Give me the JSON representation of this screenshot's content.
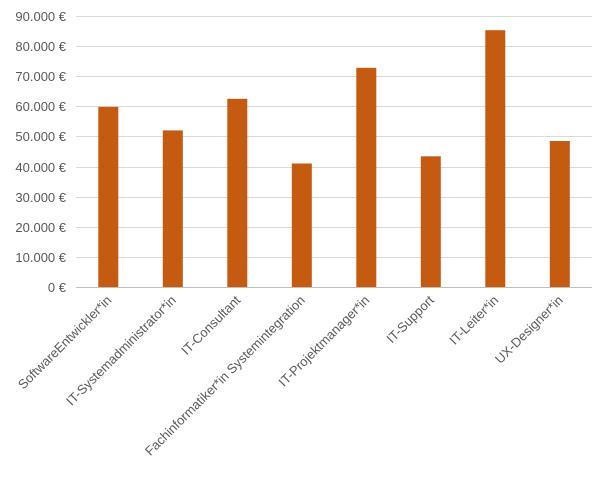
{
  "chart_data": {
    "type": "bar",
    "title": "",
    "xlabel": "",
    "ylabel": "",
    "ylim": [
      0,
      90000
    ],
    "yticks": [
      0,
      10000,
      20000,
      30000,
      40000,
      50000,
      60000,
      70000,
      80000,
      90000
    ],
    "ytick_labels": [
      "0 €",
      "10.000 €",
      "20.000 €",
      "30.000 €",
      "40.000 €",
      "50.000 €",
      "60.000 €",
      "70.000 €",
      "80.000 €",
      "90.000 €"
    ],
    "grid": true,
    "legend": "none",
    "categories": [
      "SoftwareEntwickler*in",
      "IT-Systemadministrator*in",
      "IT-Consultant",
      "Fachinformatiker*in Systemintegration",
      "IT-Projektmanager*in",
      "IT-Support",
      "IT-Leiter*in",
      "UX-Designer*in"
    ],
    "values": [
      59800,
      52000,
      62500,
      41000,
      72800,
      43400,
      85300,
      48500
    ],
    "bar_color": "#c55a11"
  }
}
